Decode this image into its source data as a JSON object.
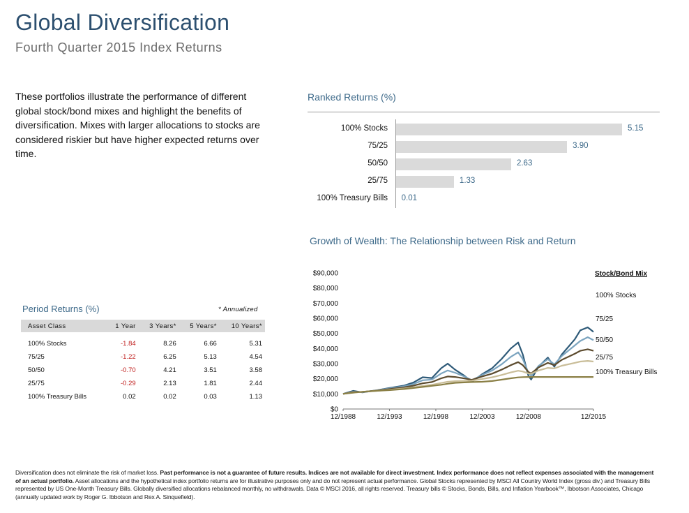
{
  "header": {
    "title": "Global Diversification",
    "subtitle": "Fourth Quarter 2015 Index Returns"
  },
  "intro_text": "These portfolios illustrate the performance of different global stock/bond mixes and highlight the benefits of diversification. Mixes with larger allocations to stocks are considered riskier but have higher expected returns over time.",
  "ranked_returns": {
    "title": "Ranked Returns (%)"
  },
  "growth_of_wealth": {
    "title": "Growth of Wealth: The Relationship between Risk and Return",
    "legend_title": "Stock/Bond Mix"
  },
  "period_returns": {
    "title": "Period Returns (%)",
    "note": "* Annualized",
    "columns": [
      "Asset Class",
      "1 Year",
      "3 Years*",
      "5 Years*",
      "10 Years*"
    ],
    "rows": [
      {
        "name": "100% Stocks",
        "y1": "-1.84",
        "y3": "8.26",
        "y5": "6.66",
        "y10": "5.31"
      },
      {
        "name": "75/25",
        "y1": "-1.22",
        "y3": "6.25",
        "y5": "5.13",
        "y10": "4.54"
      },
      {
        "name": "50/50",
        "y1": "-0.70",
        "y3": "4.21",
        "y5": "3.51",
        "y10": "3.58"
      },
      {
        "name": "25/75",
        "y1": "-0.29",
        "y3": "2.13",
        "y5": "1.81",
        "y10": "2.44"
      },
      {
        "name": "100% Treasury Bills",
        "y1": "0.02",
        "y3": "0.02",
        "y5": "0.03",
        "y10": "1.13"
      }
    ]
  },
  "footnote": {
    "part1": "Diversification does not eliminate the risk of market loss. ",
    "part2": "Past performance is not a guarantee of future results. Indices are not available for direct investment. Index performance does not reflect expenses associated with the management of an actual portfolio.",
    "part3": " Asset allocations and the hypothetical index portfolio returns are for illustrative purposes only and do not represent actual performance. Global Stocks represented by MSCI All Country World Index (gross div.) and Treasury Bills represented by US One-Month Treasury Bills. Globally diversified allocations rebalanced monthly, no withdrawals. Data © MSCI 2016, all rights reserved. Treasury bills © Stocks, Bonds, Bills, and Inflation Yearbook™, Ibbotson Associates, Chicago (annually updated work by Roger G. Ibbotson and Rex A. Sinquefield)."
  },
  "colors": {
    "title": "#2c4f6f",
    "accent": "#3e6a8a",
    "bar": "#dadada",
    "negative": "#c0201f",
    "stocks100": "#2e5a78",
    "mix75_25": "#7ba4bf",
    "mix50_50": "#5c4b2e",
    "mix25_75": "#c9bd98",
    "tbills": "#8a7f45"
  },
  "chart_data": [
    {
      "type": "bar",
      "orientation": "horizontal",
      "title": "Ranked Returns (%)",
      "categories": [
        "100% Stocks",
        "75/25",
        "50/50",
        "25/75",
        "100% Treasury Bills"
      ],
      "values": [
        5.15,
        3.9,
        2.63,
        1.33,
        0.01
      ],
      "value_labels": [
        "5.15",
        "3.90",
        "2.63",
        "1.33",
        "0.01"
      ]
    },
    {
      "type": "line",
      "title": "Growth of Wealth: The Relationship between Risk and Return",
      "legend_title": "Stock/Bond Mix",
      "legend_position": "right",
      "x_ticks": [
        "12/1988",
        "12/1993",
        "12/1998",
        "12/2003",
        "12/2008",
        "12/2015"
      ],
      "x_tick_values": [
        1988.92,
        1993.92,
        1998.92,
        2003.92,
        2008.92,
        2015.92
      ],
      "xlim": [
        1988.92,
        2015.92
      ],
      "y_ticks": [
        "$0",
        "$10,000",
        "$20,000",
        "$30,000",
        "$40,000",
        "$50,000",
        "$60,000",
        "$70,000",
        "$80,000",
        "$90,000"
      ],
      "ylim": [
        0,
        90000
      ],
      "series": [
        {
          "name": "100% Stocks",
          "color": "#2e5a78",
          "points": [
            [
              1988.92,
              10000
            ],
            [
              1990.0,
              12000
            ],
            [
              1991.0,
              11000
            ],
            [
              1992.5,
              12300
            ],
            [
              1994.0,
              14000
            ],
            [
              1995.5,
              15500
            ],
            [
              1996.5,
              17500
            ],
            [
              1997.5,
              21000
            ],
            [
              1998.5,
              20500
            ],
            [
              1999.5,
              27000
            ],
            [
              2000.2,
              30000
            ],
            [
              2001.0,
              26000
            ],
            [
              2002.0,
              22000
            ],
            [
              2002.8,
              18000
            ],
            [
              2003.9,
              23000
            ],
            [
              2005.0,
              27000
            ],
            [
              2006.0,
              33000
            ],
            [
              2007.0,
              40000
            ],
            [
              2007.8,
              44000
            ],
            [
              2008.3,
              36000
            ],
            [
              2008.9,
              22000
            ],
            [
              2009.2,
              19500
            ],
            [
              2010.0,
              28000
            ],
            [
              2011.0,
              34000
            ],
            [
              2011.7,
              28000
            ],
            [
              2012.5,
              36000
            ],
            [
              2013.9,
              46000
            ],
            [
              2014.5,
              52000
            ],
            [
              2015.3,
              54000
            ],
            [
              2015.92,
              51000
            ]
          ]
        },
        {
          "name": "75/25",
          "color": "#7ba4bf",
          "points": [
            [
              1988.92,
              10000
            ],
            [
              1990.0,
              11500
            ],
            [
              1991.0,
              11200
            ],
            [
              1992.5,
              12300
            ],
            [
              1994.0,
              13600
            ],
            [
              1995.5,
              15000
            ],
            [
              1996.5,
              16500
            ],
            [
              1997.5,
              19000
            ],
            [
              1998.5,
              19500
            ],
            [
              1999.5,
              23500
            ],
            [
              2000.2,
              25500
            ],
            [
              2001.0,
              24000
            ],
            [
              2002.0,
              21500
            ],
            [
              2002.8,
              19000
            ],
            [
              2003.9,
              22500
            ],
            [
              2005.0,
              25500
            ],
            [
              2006.0,
              29500
            ],
            [
              2007.0,
              34500
            ],
            [
              2007.8,
              37500
            ],
            [
              2008.3,
              33000
            ],
            [
              2008.9,
              24000
            ],
            [
              2009.2,
              22000
            ],
            [
              2010.0,
              28500
            ],
            [
              2011.0,
              33000
            ],
            [
              2011.7,
              29500
            ],
            [
              2012.5,
              35000
            ],
            [
              2013.9,
              42000
            ],
            [
              2014.5,
              45000
            ],
            [
              2015.3,
              47500
            ],
            [
              2015.92,
              45500
            ]
          ]
        },
        {
          "name": "50/50",
          "color": "#5c4b2e",
          "points": [
            [
              1988.92,
              10000
            ],
            [
              1990.0,
              11200
            ],
            [
              1991.0,
              11300
            ],
            [
              1992.5,
              12200
            ],
            [
              1994.0,
              13200
            ],
            [
              1995.5,
              14300
            ],
            [
              1996.5,
              15400
            ],
            [
              1997.5,
              17000
            ],
            [
              1998.5,
              17800
            ],
            [
              1999.5,
              20300
            ],
            [
              2000.2,
              21500
            ],
            [
              2001.0,
              21200
            ],
            [
              2002.0,
              20200
            ],
            [
              2002.8,
              19300
            ],
            [
              2003.9,
              21500
            ],
            [
              2005.0,
              23400
            ],
            [
              2006.0,
              26000
            ],
            [
              2007.0,
              29000
            ],
            [
              2007.8,
              31000
            ],
            [
              2008.3,
              29000
            ],
            [
              2008.9,
              24500
            ],
            [
              2009.2,
              23500
            ],
            [
              2010.0,
              27500
            ],
            [
              2011.0,
              30500
            ],
            [
              2011.7,
              29000
            ],
            [
              2012.5,
              32500
            ],
            [
              2013.9,
              36500
            ],
            [
              2014.5,
              38500
            ],
            [
              2015.3,
              39500
            ],
            [
              2015.92,
              38500
            ]
          ]
        },
        {
          "name": "25/75",
          "color": "#c9bd98",
          "points": [
            [
              1988.92,
              10000
            ],
            [
              1990.0,
              10900
            ],
            [
              1991.0,
              11300
            ],
            [
              1992.5,
              12000
            ],
            [
              1994.0,
              12800
            ],
            [
              1995.5,
              13600
            ],
            [
              1996.5,
              14300
            ],
            [
              1997.5,
              15300
            ],
            [
              1998.5,
              16000
            ],
            [
              1999.5,
              17200
            ],
            [
              2000.2,
              18000
            ],
            [
              2001.0,
              18400
            ],
            [
              2002.0,
              18600
            ],
            [
              2002.8,
              18800
            ],
            [
              2003.9,
              19800
            ],
            [
              2005.0,
              21000
            ],
            [
              2006.0,
              22500
            ],
            [
              2007.0,
              24200
            ],
            [
              2007.8,
              25300
            ],
            [
              2008.3,
              24800
            ],
            [
              2008.9,
              23500
            ],
            [
              2009.2,
              23300
            ],
            [
              2010.0,
              25500
            ],
            [
              2011.0,
              27200
            ],
            [
              2011.7,
              26800
            ],
            [
              2012.5,
              28600
            ],
            [
              2013.9,
              30500
            ],
            [
              2014.5,
              31400
            ],
            [
              2015.3,
              31800
            ],
            [
              2015.92,
              31400
            ]
          ]
        },
        {
          "name": "100% Treasury Bills",
          "color": "#8a7f45",
          "points": [
            [
              1988.92,
              10000
            ],
            [
              1990.0,
              10800
            ],
            [
              1991.0,
              11400
            ],
            [
              1992.5,
              12000
            ],
            [
              1994.0,
              12500
            ],
            [
              1995.5,
              13200
            ],
            [
              1996.5,
              13900
            ],
            [
              1997.5,
              14600
            ],
            [
              1998.5,
              15300
            ],
            [
              1999.5,
              16000
            ],
            [
              2000.2,
              16700
            ],
            [
              2001.0,
              17300
            ],
            [
              2002.0,
              17600
            ],
            [
              2002.8,
              17800
            ],
            [
              2003.9,
              18000
            ],
            [
              2005.0,
              18500
            ],
            [
              2006.0,
              19400
            ],
            [
              2007.0,
              20300
            ],
            [
              2007.8,
              20900
            ],
            [
              2008.3,
              21100
            ],
            [
              2008.9,
              21200
            ],
            [
              2009.2,
              21200
            ],
            [
              2010.0,
              21200
            ],
            [
              2011.0,
              21200
            ],
            [
              2011.7,
              21200
            ],
            [
              2012.5,
              21200
            ],
            [
              2013.9,
              21200
            ],
            [
              2014.5,
              21200
            ],
            [
              2015.3,
              21200
            ],
            [
              2015.92,
              21200
            ]
          ]
        }
      ]
    }
  ]
}
